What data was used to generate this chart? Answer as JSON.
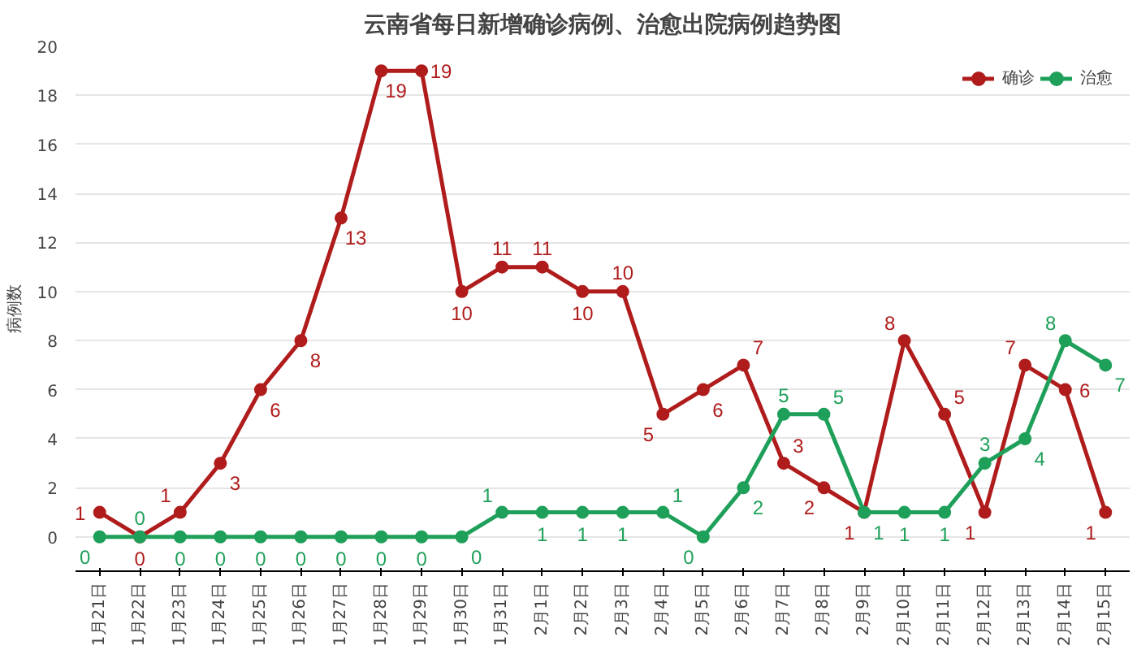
{
  "chart_data": {
    "type": "line",
    "title": "云南省每日新增确诊病例、治愈出院病例趋势图",
    "ylabel": "病例数",
    "categories": [
      "1月21日",
      "1月22日",
      "1月23日",
      "1月24日",
      "1月25日",
      "1月26日",
      "1月27日",
      "1月28日",
      "1月29日",
      "1月30日",
      "1月31日",
      "2月1日",
      "2月2日",
      "2月3日",
      "2月4日",
      "2月5日",
      "2月6日",
      "2月7日",
      "2月8日",
      "2月9日",
      "2月10日",
      "2月11日",
      "2月12日",
      "2月13日",
      "2月14日",
      "2月15日"
    ],
    "series": [
      {
        "name": "确诊",
        "color": "#b01c1c",
        "values": [
          1,
          0,
          1,
          3,
          6,
          8,
          13,
          19,
          19,
          10,
          11,
          11,
          10,
          10,
          5,
          6,
          7,
          3,
          2,
          1,
          8,
          5,
          1,
          7,
          6,
          1
        ]
      },
      {
        "name": "治愈",
        "color": "#1fa05a",
        "values": [
          0,
          0,
          0,
          0,
          0,
          0,
          0,
          0,
          0,
          0,
          1,
          1,
          1,
          1,
          1,
          0,
          2,
          5,
          5,
          1,
          1,
          1,
          3,
          4,
          8,
          7
        ]
      }
    ],
    "ylim": [
      0,
      20
    ],
    "yticks": [
      0,
      2,
      4,
      6,
      8,
      10,
      12,
      14,
      16,
      18,
      20
    ],
    "grid": "y",
    "legend": "top right",
    "marker": "circle",
    "line_style": "solid",
    "data_labels": true
  }
}
